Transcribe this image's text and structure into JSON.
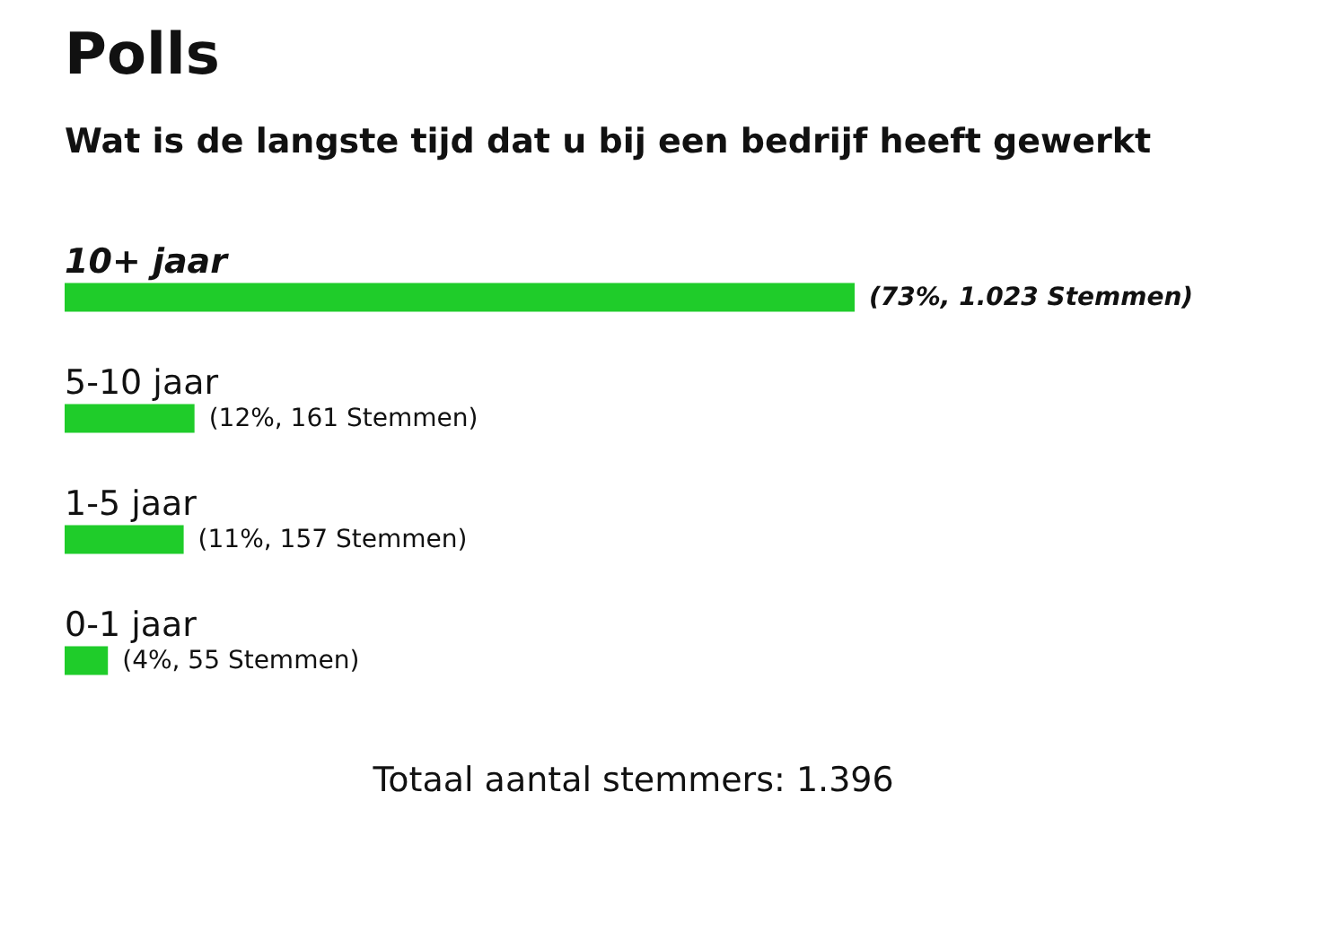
{
  "chart_data": {
    "type": "bar",
    "orientation": "horizontal",
    "title": "Polls",
    "subtitle": "Wat is de langste tijd dat u bij een bedrijf heeft gewerkt",
    "categories": [
      "10+ jaar",
      "5-10 jaar",
      "1-5 jaar",
      "0-1 jaar"
    ],
    "values": [
      73,
      12,
      11,
      4
    ],
    "value_labels": [
      "(73%, 1.023 Stemmen)",
      "(12%, 161 Stemmen)",
      "(11%, 157 Stemmen)",
      "(4%, 55 Stemmen)"
    ],
    "color": "#1fcc2a",
    "annotations": [
      "Totaal aantal stemmers: 1.396"
    ]
  }
}
